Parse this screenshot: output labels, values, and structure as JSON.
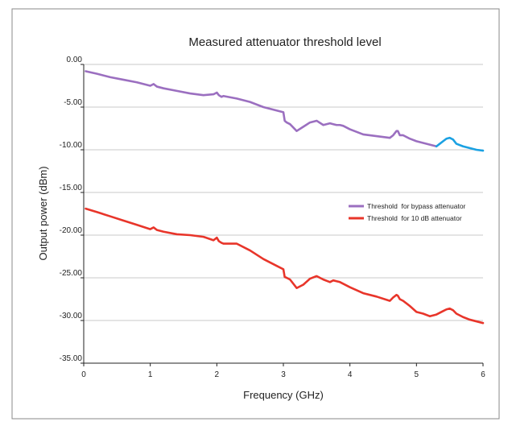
{
  "chart_data": {
    "type": "line",
    "title": "Measured attenuator threshold level",
    "xlabel": "Frequency  (GHz)",
    "ylabel": "Output power (dBm)",
    "xlim": [
      0,
      6
    ],
    "ylim": [
      -35,
      0
    ],
    "x_ticks": [
      0,
      1,
      2,
      3,
      4,
      5,
      6
    ],
    "x_tick_labels": [
      "0",
      "1",
      "2",
      "3",
      "4",
      "5",
      "6"
    ],
    "y_ticks": [
      0,
      -5,
      -10,
      -15,
      -20,
      -25,
      -30,
      -35
    ],
    "y_tick_labels": [
      "0.00",
      "-5.00",
      "-10.00",
      "-15.00",
      "-20.00",
      "-25.00",
      "-30.00",
      "-35.00"
    ],
    "grid": "horizontal",
    "legend_position": "right",
    "series": [
      {
        "name": "Threshold  for bypass attenuator",
        "color": "#9b6fc0",
        "extension_color": "#1ba1e2",
        "extension_from_x": 5.3,
        "x": [
          0.03,
          0.2,
          0.4,
          0.6,
          0.8,
          1.0,
          1.05,
          1.1,
          1.2,
          1.4,
          1.6,
          1.8,
          1.95,
          2.0,
          2.03,
          2.07,
          2.1,
          2.3,
          2.5,
          2.7,
          2.9,
          3.0,
          3.02,
          3.05,
          3.1,
          3.2,
          3.3,
          3.4,
          3.5,
          3.6,
          3.7,
          3.75,
          3.8,
          3.85,
          3.9,
          4.0,
          4.2,
          4.4,
          4.6,
          4.65,
          4.7,
          4.72,
          4.75,
          4.8,
          4.9,
          5.0,
          5.1,
          5.2,
          5.3,
          5.35,
          5.4,
          5.45,
          5.5,
          5.55,
          5.6,
          5.7,
          5.8,
          5.9,
          6.0
        ],
        "values": [
          -0.8,
          -1.1,
          -1.5,
          -1.8,
          -2.1,
          -2.5,
          -2.3,
          -2.6,
          -2.8,
          -3.1,
          -3.4,
          -3.6,
          -3.5,
          -3.3,
          -3.6,
          -3.8,
          -3.7,
          -4.0,
          -4.4,
          -5.0,
          -5.4,
          -5.6,
          -6.6,
          -6.8,
          -7.0,
          -7.8,
          -7.3,
          -6.8,
          -6.6,
          -7.1,
          -6.9,
          -7.0,
          -7.1,
          -7.1,
          -7.2,
          -7.6,
          -8.2,
          -8.4,
          -8.6,
          -8.3,
          -7.8,
          -7.8,
          -8.3,
          -8.3,
          -8.7,
          -9.0,
          -9.2,
          -9.4,
          -9.6,
          -9.3,
          -9.0,
          -8.7,
          -8.6,
          -8.8,
          -9.3,
          -9.6,
          -9.8,
          -10.0,
          -10.1
        ]
      },
      {
        "name": "Threshold  for 10 dB attenuator",
        "color": "#e8352a",
        "x": [
          0.03,
          0.2,
          0.4,
          0.6,
          0.8,
          1.0,
          1.05,
          1.1,
          1.2,
          1.4,
          1.6,
          1.8,
          1.95,
          2.0,
          2.03,
          2.07,
          2.1,
          2.3,
          2.5,
          2.7,
          2.9,
          3.0,
          3.02,
          3.05,
          3.1,
          3.2,
          3.3,
          3.4,
          3.5,
          3.6,
          3.7,
          3.75,
          3.8,
          3.85,
          3.9,
          4.0,
          4.2,
          4.4,
          4.6,
          4.65,
          4.7,
          4.72,
          4.75,
          4.8,
          4.9,
          5.0,
          5.1,
          5.2,
          5.3,
          5.35,
          5.4,
          5.45,
          5.5,
          5.55,
          5.6,
          5.7,
          5.8,
          5.9,
          6.0
        ],
        "values": [
          -16.9,
          -17.3,
          -17.8,
          -18.3,
          -18.8,
          -19.3,
          -19.1,
          -19.4,
          -19.6,
          -19.9,
          -20.0,
          -20.2,
          -20.6,
          -20.3,
          -20.7,
          -20.9,
          -21.0,
          -21.0,
          -21.8,
          -22.8,
          -23.6,
          -24.0,
          -24.9,
          -25.0,
          -25.2,
          -26.2,
          -25.8,
          -25.1,
          -24.8,
          -25.2,
          -25.5,
          -25.3,
          -25.4,
          -25.5,
          -25.7,
          -26.1,
          -26.8,
          -27.2,
          -27.7,
          -27.3,
          -27.0,
          -27.1,
          -27.5,
          -27.7,
          -28.3,
          -29.0,
          -29.2,
          -29.5,
          -29.3,
          -29.1,
          -28.9,
          -28.7,
          -28.6,
          -28.8,
          -29.2,
          -29.6,
          -29.9,
          -30.1,
          -30.3
        ]
      }
    ]
  }
}
